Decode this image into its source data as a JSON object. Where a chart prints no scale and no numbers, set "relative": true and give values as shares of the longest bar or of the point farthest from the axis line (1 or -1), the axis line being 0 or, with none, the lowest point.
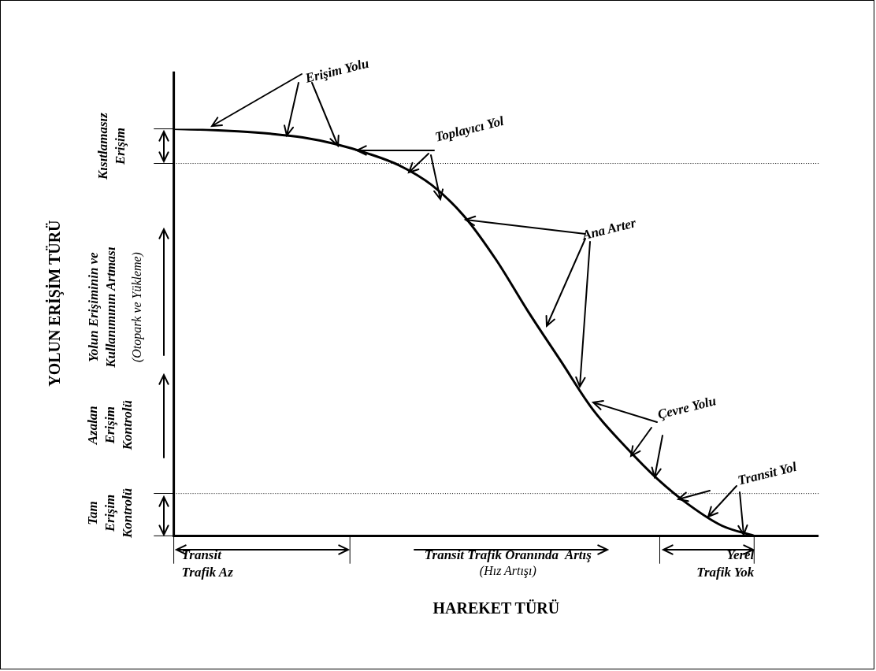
{
  "chart_data": {
    "type": "line",
    "relative": true,
    "xlabel": "HAREKET TÜRÜ",
    "categories": [
      null,
      null,
      null,
      null,
      null,
      null,
      null,
      null,
      null,
      null,
      null,
      null,
      null,
      null,
      null,
      null,
      null,
      null,
      null,
      null,
      null
    ],
    "series": [
      {
        "color": "#000000",
        "values": [
          1.0,
          0.998,
          0.994,
          0.988,
          0.979,
          0.963,
          0.94,
          0.91,
          0.862,
          0.786,
          0.678,
          0.55,
          0.43,
          0.31,
          0.22,
          0.14,
          0.075,
          0.025,
          0,
          null,
          null
        ]
      }
    ],
    "ref_lines": [
      {
        "axis": "y",
        "value": 0.915,
        "line_style": "dotted"
      },
      {
        "axis": "y",
        "value": 0.104,
        "line_style": "dotted"
      }
    ],
    "annotations": [
      "Erişim Yolu",
      "Toplayıcı Yol",
      "Ana Arter",
      "Çevre Yolu",
      "Transit Yol",
      "Kısıtlamasız\nErişim",
      "Yolun Erişiminin ve\nKullanımının Artması",
      "(Otopark ve Yükleme)",
      "Azalan\nErişim\nKontrolü",
      "Tam\nErişim\nKontrolü",
      "Transit\nTrafik Az",
      "Transit Trafik Oranında  Artış",
      "(Hız Artışı)",
      "Yerel\nTrafik Yok",
      "YOLUN ERİŞİM TÜRÜ"
    ]
  }
}
